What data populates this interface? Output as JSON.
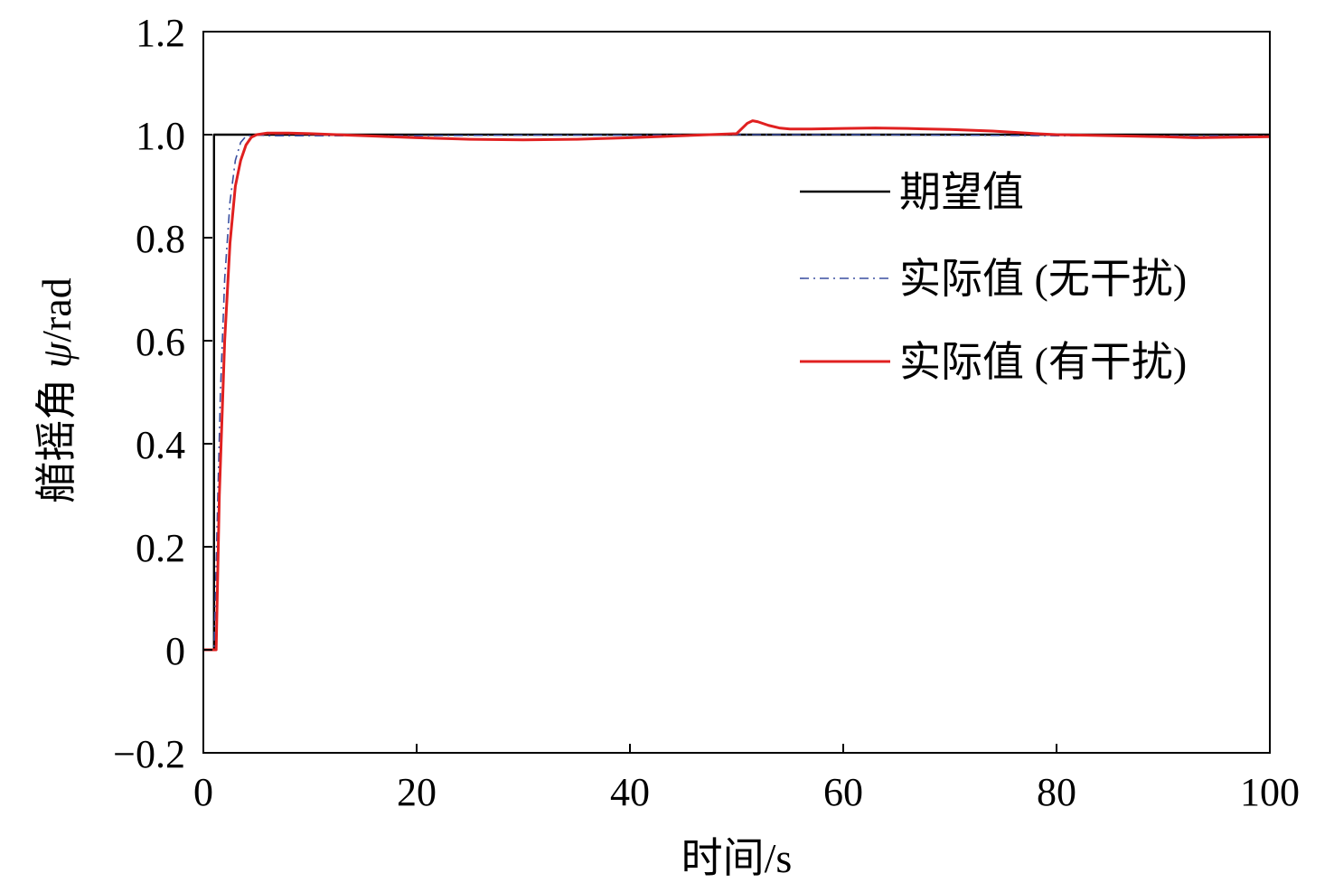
{
  "chart_data": {
    "type": "line",
    "title": "",
    "xlabel": "时间/s",
    "ylabel_prefix": "艏摇角 ",
    "ylabel_symbol": "ψ",
    "ylabel_suffix": "/rad",
    "xlim": [
      0,
      100
    ],
    "ylim": [
      -0.2,
      1.2
    ],
    "xticks": [
      0,
      20,
      40,
      60,
      80,
      100
    ],
    "xtick_labels": [
      "0",
      "20",
      "40",
      "60",
      "80",
      "100"
    ],
    "yticks": [
      -0.2,
      0,
      0.2,
      0.4,
      0.6,
      0.8,
      1.0,
      1.2
    ],
    "ytick_labels": [
      "−0.2",
      "0",
      "0.2",
      "0.4",
      "0.6",
      "0.8",
      "1.0",
      "1.2"
    ],
    "grid": false,
    "legend_position": "right",
    "series": [
      {
        "name": "期望值",
        "color": "#000000",
        "style": "solid",
        "x": [
          0,
          1,
          1,
          100
        ],
        "y": [
          0,
          0,
          1.0,
          1.0
        ]
      },
      {
        "name": "实际值 (无干扰)",
        "color": "#3a4fa0",
        "style": "dashdot",
        "x": [
          0,
          1.0,
          1.3,
          1.6,
          2.0,
          2.5,
          3.0,
          3.5,
          4.0,
          5.0,
          6.0,
          10,
          20,
          30,
          40,
          50,
          60,
          70,
          80,
          90,
          100
        ],
        "y": [
          0,
          0,
          0.25,
          0.5,
          0.72,
          0.87,
          0.95,
          0.985,
          0.997,
          1.0,
          0.998,
          0.998,
          0.998,
          0.999,
          0.999,
          1.0,
          1.0,
          0.999,
          0.998,
          0.998,
          0.998
        ]
      },
      {
        "name": "实际值 (有干扰)",
        "color": "#e02020",
        "style": "solid",
        "x": [
          0,
          1.2,
          1.5,
          2.0,
          2.5,
          3.0,
          3.5,
          4.0,
          4.5,
          5.0,
          6.0,
          8.0,
          10,
          15,
          20,
          25,
          30,
          35,
          40,
          45,
          50,
          50.5,
          51,
          51.5,
          52,
          53,
          54,
          55,
          57,
          60,
          63,
          66,
          70,
          74,
          78,
          80,
          85,
          90,
          93,
          96,
          100
        ],
        "y": [
          0,
          0,
          0.3,
          0.6,
          0.79,
          0.9,
          0.95,
          0.98,
          0.995,
          1.0,
          1.003,
          1.003,
          1.002,
          0.998,
          0.994,
          0.991,
          0.99,
          0.991,
          0.994,
          0.998,
          1.002,
          1.012,
          1.022,
          1.027,
          1.025,
          1.018,
          1.013,
          1.011,
          1.011,
          1.012,
          1.013,
          1.012,
          1.01,
          1.007,
          1.002,
          1.0,
          0.998,
          0.996,
          0.994,
          0.995,
          0.996
        ]
      }
    ]
  }
}
